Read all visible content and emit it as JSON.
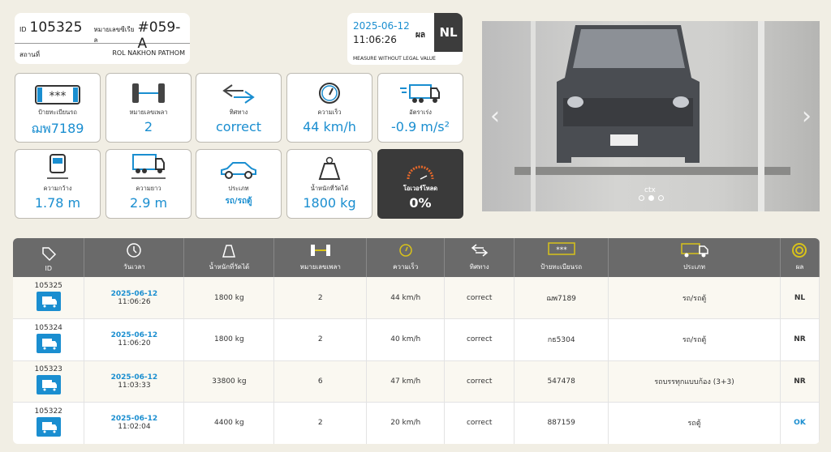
{
  "header": {
    "id_label": "ID",
    "id": "105325",
    "serial_label": "หมายเลขซีเรียล",
    "serial": "#059-A",
    "location_label": "สถานที่",
    "location": "ROL NAKHON PATHOM"
  },
  "measure": {
    "date": "2025-06-12",
    "time": "11:06:26",
    "result_label": "ผล",
    "result": "NL",
    "note": "MEASURE WITHOUT LEGAL VALUE"
  },
  "tiles": [
    {
      "icon": "license-plate-icon",
      "label": "ป้ายทะเบียนรถ",
      "value": "ฌพ7189"
    },
    {
      "icon": "axle-icon",
      "label": "หมายเลขเพลา",
      "value": "2"
    },
    {
      "icon": "direction-arrows-icon",
      "label": "ทิศทาง",
      "value": "correct"
    },
    {
      "icon": "speedometer-icon",
      "label": "ความเร็ว",
      "value": "44 km/h"
    },
    {
      "icon": "accelerating-truck-icon",
      "label": "อัตราเร่ง",
      "value": "-0.9 m/s²"
    },
    {
      "icon": "truck-width-icon",
      "label": "ความกว้าง",
      "value": "1.78 m"
    },
    {
      "icon": "truck-length-icon",
      "label": "ความยาว",
      "value": "2.9 m"
    },
    {
      "icon": "car-icon",
      "label": "ประเภท",
      "value": "รถ/รถตู้"
    },
    {
      "icon": "weight-icon",
      "label": "น้ำหนักที่วัดได้",
      "value": "1800 kg"
    },
    {
      "icon": "overload-gauge-icon",
      "label": "โอเวอร์โหลด",
      "value": "0%"
    }
  ],
  "photo": {
    "caption": "ctx",
    "slides": 3,
    "active_slide": 2
  },
  "table": {
    "headers": [
      "ID",
      "วันเวลา",
      "น้ำหนักที่วัดได้",
      "หมายเลขเพลา",
      "ความเร็ว",
      "ทิศทาง",
      "ป้ายทะเบียนรถ",
      "ประเภท",
      "ผล"
    ],
    "rows": [
      {
        "id": "105325",
        "date": "2025-06-12",
        "time": "11:06:26",
        "weight": "1800 kg",
        "axles": "2",
        "speed": "44 km/h",
        "direction": "correct",
        "plate": "ฌพ7189",
        "type": "รถ/รถตู้",
        "result": "NL"
      },
      {
        "id": "105324",
        "date": "2025-06-12",
        "time": "11:06:20",
        "weight": "1800 kg",
        "axles": "2",
        "speed": "40 km/h",
        "direction": "correct",
        "plate": "กธ5304",
        "type": "รถ/รถตู้",
        "result": "NR"
      },
      {
        "id": "105323",
        "date": "2025-06-12",
        "time": "11:03:33",
        "weight": "33800 kg",
        "axles": "6",
        "speed": "47 km/h",
        "direction": "correct",
        "plate": "547478",
        "type": "รถบรรทุกแบบก้อง (3+3)",
        "result": "NR"
      },
      {
        "id": "105322",
        "date": "2025-06-12",
        "time": "11:02:04",
        "weight": "4400 kg",
        "axles": "2",
        "speed": "20 km/h",
        "direction": "correct",
        "plate": "887159",
        "type": "รถตู้",
        "result": "OK"
      }
    ]
  },
  "colors": {
    "accent": "#1a8ed0",
    "dark": "#3a3a3a",
    "header_bg": "#6a6a6a",
    "icon_yellow": "#d8c21a",
    "background": "#f1eee4"
  }
}
